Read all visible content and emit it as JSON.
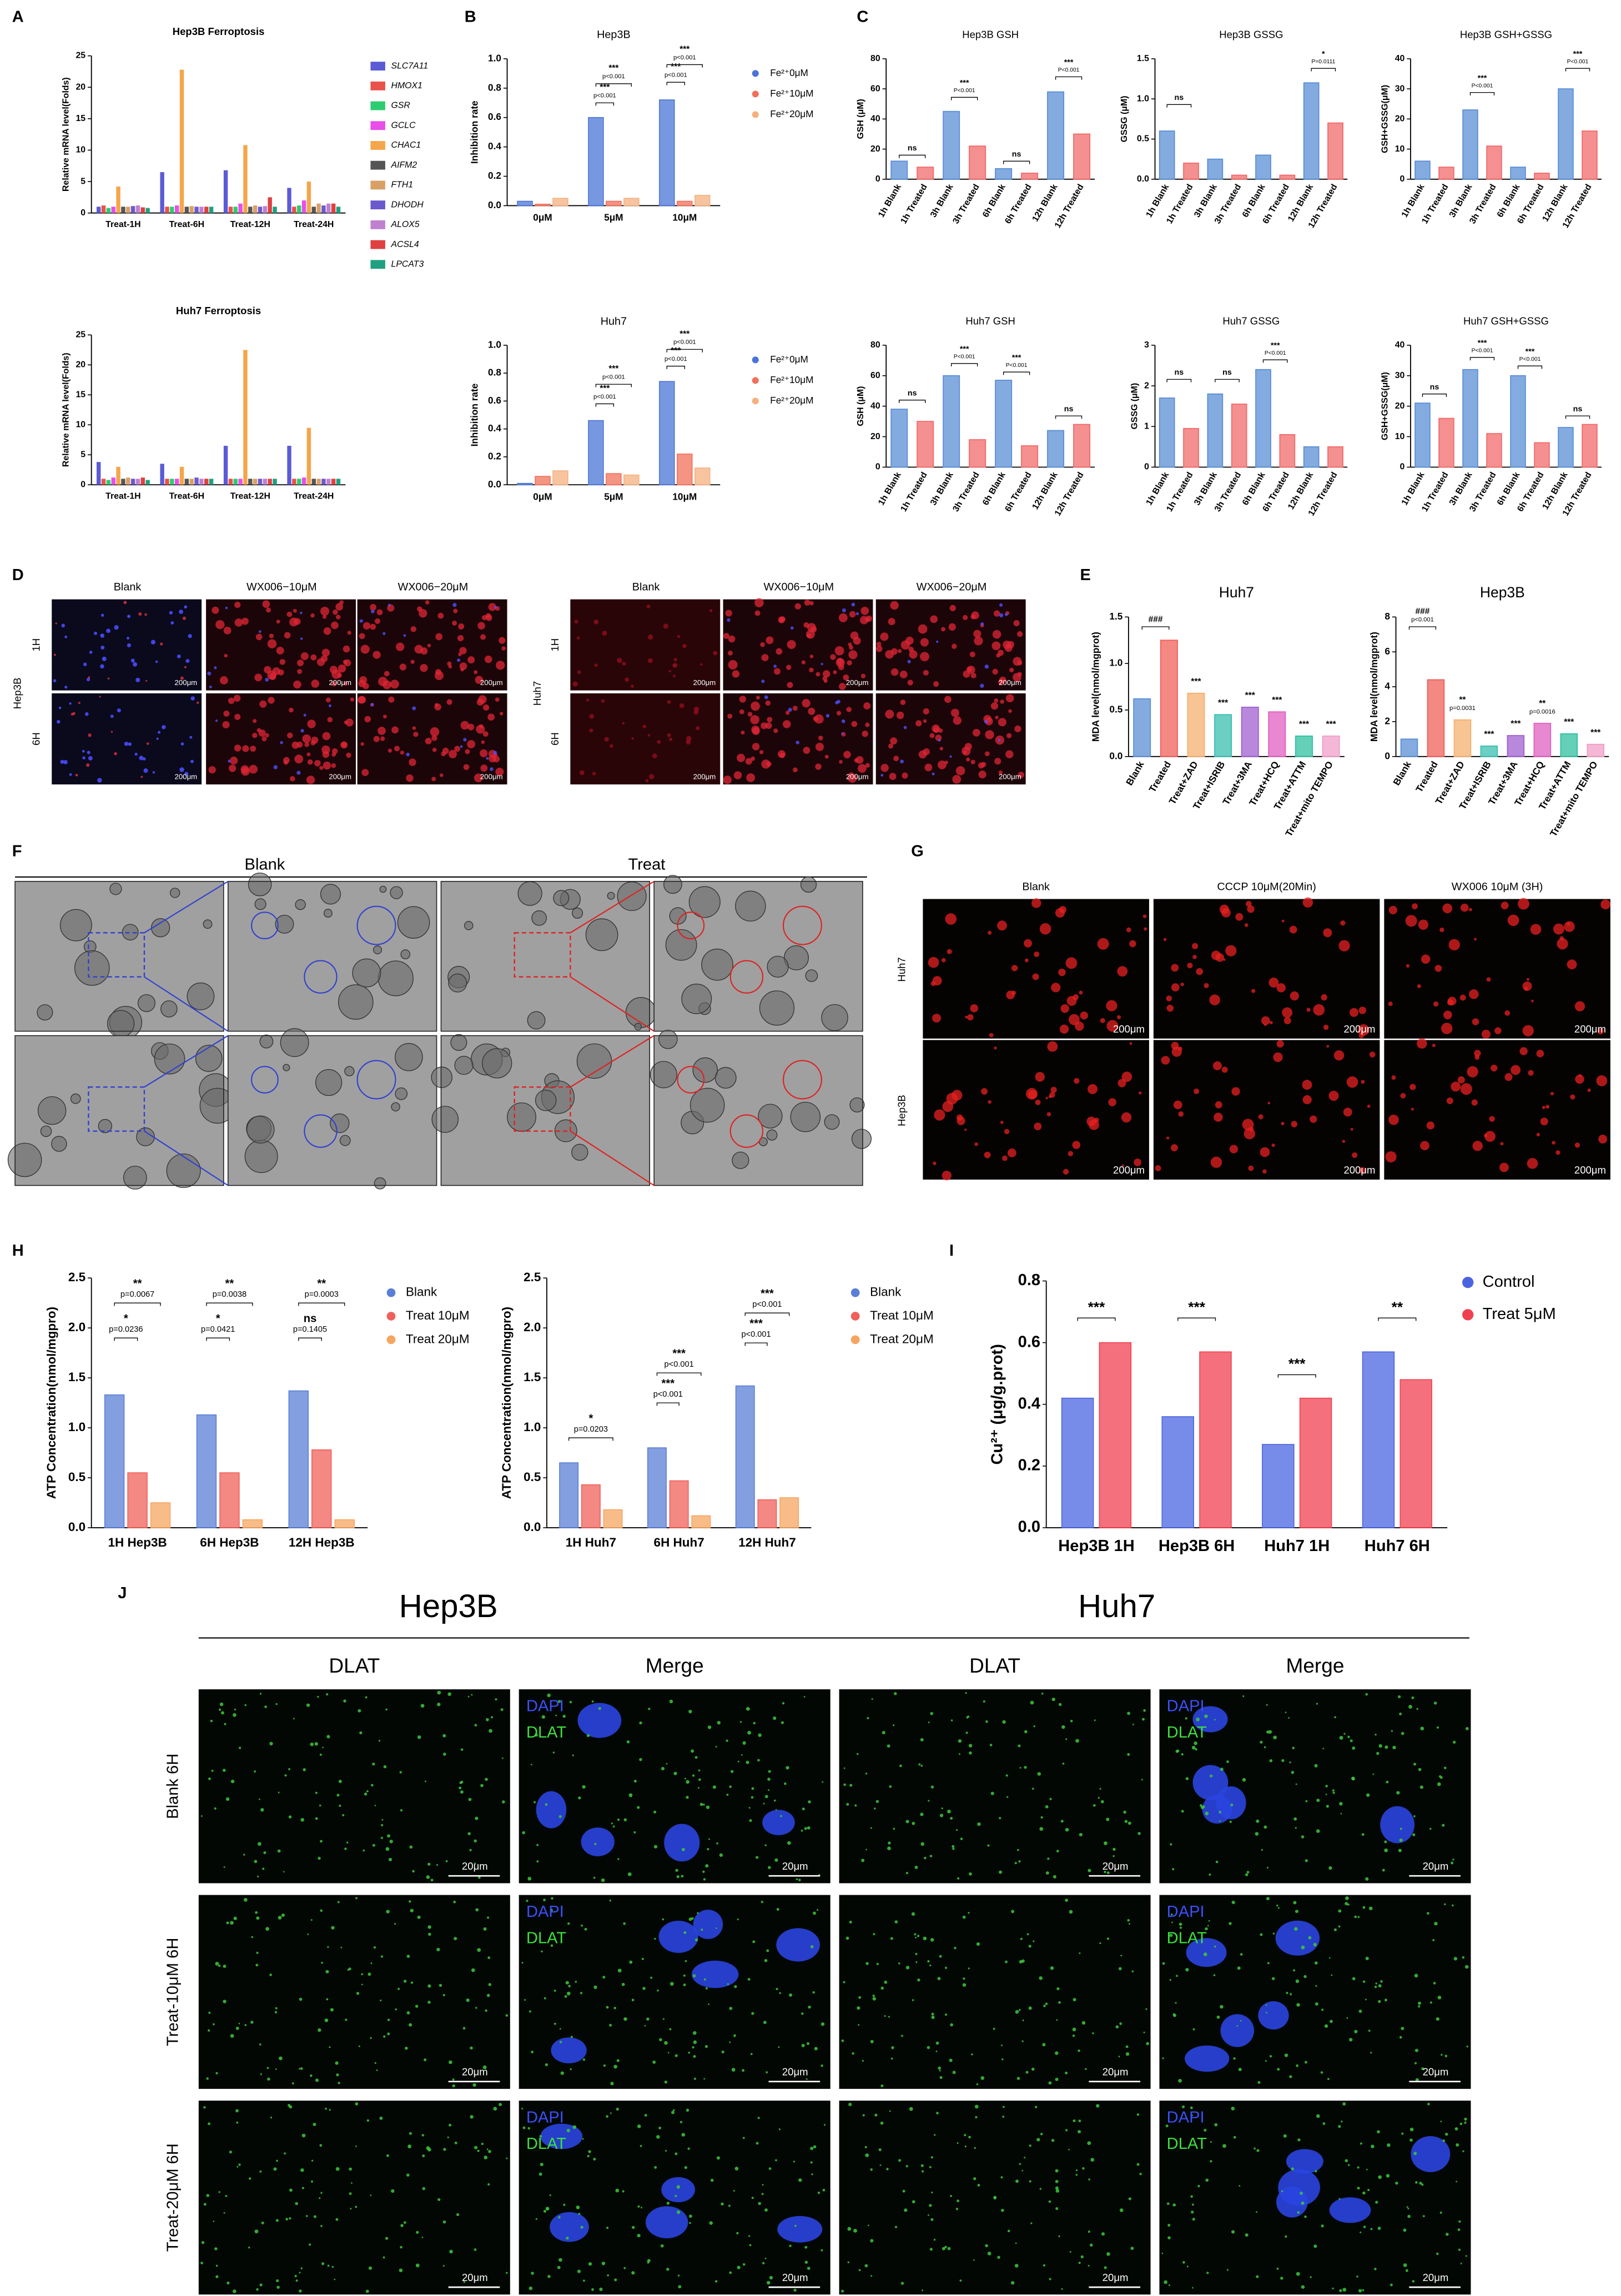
{
  "chart_data": [
    {
      "type": "bar",
      "title": "Hep3B Ferroptosis",
      "ylabel": "Relative mRNA level(Folds)",
      "categories": [
        "Treat-1H",
        "Treat-6H",
        "Treat-12H",
        "Treat-24H"
      ],
      "series": [
        {
          "name": "SLC7A11",
          "color": "#5b5bd6",
          "values": [
            1.0,
            6.5,
            6.8,
            4.0
          ]
        },
        {
          "name": "HMOX1",
          "color": "#e8524a",
          "values": [
            1.2,
            1.0,
            1.0,
            1.0
          ]
        },
        {
          "name": "GSR",
          "color": "#2ecc71",
          "values": [
            0.8,
            1.0,
            1.0,
            1.2
          ]
        },
        {
          "name": "GCLC",
          "color": "#e84ee8",
          "values": [
            1.0,
            1.2,
            1.5,
            2.0
          ]
        },
        {
          "name": "CHAC1",
          "color": "#f5a54a",
          "values": [
            4.2,
            22.8,
            10.8,
            5.0
          ]
        },
        {
          "name": "AIFM2",
          "color": "#555555",
          "values": [
            1.0,
            1.0,
            1.0,
            1.0
          ]
        },
        {
          "name": "FTH1",
          "color": "#d9a066",
          "values": [
            1.0,
            1.1,
            1.2,
            1.5
          ]
        },
        {
          "name": "DHODH",
          "color": "#6a5acd",
          "values": [
            1.1,
            1.0,
            1.0,
            1.2
          ]
        },
        {
          "name": "ALOX5",
          "color": "#c080d0",
          "values": [
            1.2,
            1.0,
            1.1,
            1.5
          ]
        },
        {
          "name": "ACSL4",
          "color": "#e04040",
          "values": [
            0.9,
            1.0,
            2.5,
            1.5
          ]
        },
        {
          "name": "LPCAT3",
          "color": "#20a080",
          "values": [
            0.8,
            1.0,
            1.0,
            1.0
          ]
        }
      ],
      "ylim": [
        0,
        25
      ],
      "yticks": [
        0,
        5,
        10,
        15,
        20,
        25
      ],
      "legend": true
    },
    {
      "type": "bar",
      "title": "Huh7 Ferroptosis",
      "ylabel": "Relative mRNA level(Folds)",
      "categories": [
        "Treat-1H",
        "Treat-6H",
        "Treat-12H",
        "Treat-24H"
      ],
      "series": [
        {
          "name": "SLC7A11",
          "color": "#5b5bd6",
          "values": [
            3.8,
            3.5,
            6.5,
            6.5
          ]
        },
        {
          "name": "HMOX1",
          "color": "#e8524a",
          "values": [
            1.0,
            1.0,
            1.0,
            1.0
          ]
        },
        {
          "name": "GSR",
          "color": "#2ecc71",
          "values": [
            0.8,
            1.0,
            1.0,
            1.0
          ]
        },
        {
          "name": "GCLC",
          "color": "#e84ee8",
          "values": [
            1.2,
            1.0,
            1.0,
            1.2
          ]
        },
        {
          "name": "CHAC1",
          "color": "#f5a54a",
          "values": [
            3.0,
            3.0,
            22.5,
            9.5
          ]
        },
        {
          "name": "AIFM2",
          "color": "#555555",
          "values": [
            1.0,
            1.0,
            1.0,
            1.0
          ]
        },
        {
          "name": "FTH1",
          "color": "#d9a066",
          "values": [
            1.2,
            1.0,
            1.0,
            1.0
          ]
        },
        {
          "name": "DHODH",
          "color": "#6a5acd",
          "values": [
            1.0,
            1.2,
            1.0,
            1.0
          ]
        },
        {
          "name": "ALOX5",
          "color": "#c080d0",
          "values": [
            1.0,
            1.0,
            1.0,
            1.0
          ]
        },
        {
          "name": "ACSL4",
          "color": "#e04040",
          "values": [
            1.2,
            1.0,
            1.0,
            1.0
          ]
        },
        {
          "name": "LPCAT3",
          "color": "#20a080",
          "values": [
            0.8,
            1.0,
            1.0,
            1.0
          ]
        }
      ],
      "ylim": [
        0,
        25
      ],
      "yticks": [
        0,
        5,
        10,
        15,
        20,
        25
      ],
      "legend": false
    },
    {
      "type": "bar",
      "title": "Hep3B",
      "ylabel": "Inhibition rate",
      "categories": [
        "0μM",
        "5μM",
        "10μM"
      ],
      "series": [
        {
          "name": "Fe²⁺0μM",
          "color": "#4a74d6",
          "values": [
            0.03,
            0.6,
            0.72
          ]
        },
        {
          "name": "Fe²⁺10μM",
          "color": "#f0705a",
          "values": [
            0.01,
            0.03,
            0.03
          ]
        },
        {
          "name": "Fe²⁺20μM",
          "color": "#f5b080",
          "values": [
            0.05,
            0.05,
            0.07
          ]
        }
      ],
      "ylim": [
        0,
        1
      ],
      "yticks": [
        {
          "value": 0,
          "label": "0.0"
        },
        0.2,
        0.4,
        0.6,
        0.8,
        {
          "value": 1,
          "label": "1.0"
        }
      ],
      "legend": true,
      "annotations": [
        "***",
        "p<0.001",
        "***",
        "p<0.001",
        "***",
        "p<0.001",
        "***",
        "p<0.001"
      ]
    },
    {
      "type": "bar",
      "title": "Huh7",
      "ylabel": "Inhibition rate",
      "categories": [
        "0μM",
        "5μM",
        "10μM"
      ],
      "series": [
        {
          "name": "Fe²⁺0μM",
          "color": "#4a74d6",
          "values": [
            0.01,
            0.46,
            0.74
          ]
        },
        {
          "name": "Fe²⁺10μM",
          "color": "#f0705a",
          "values": [
            0.06,
            0.08,
            0.22
          ]
        },
        {
          "name": "Fe²⁺20μM",
          "color": "#f5b080",
          "values": [
            0.1,
            0.07,
            0.12
          ]
        }
      ],
      "ylim": [
        0,
        1
      ],
      "yticks": [
        {
          "value": 0,
          "label": "0.0"
        },
        0.2,
        0.4,
        0.6,
        0.8,
        {
          "value": 1,
          "label": "1.0"
        }
      ],
      "legend": true,
      "annotations": [
        "***",
        "p<0.001",
        "***",
        "p<0.001",
        "***",
        "p<0.001",
        "***",
        "p<0.001"
      ]
    },
    {
      "type": "bar",
      "title": "Hep3B GSH",
      "ylabel": "GSH (μM)",
      "categories": [
        "1h Blank",
        "1h Treated",
        "3h Blank",
        "3h Treated",
        "6h Blank",
        "6h Treated",
        "12h Blank",
        "12h Treated"
      ],
      "values": [
        12,
        8,
        45,
        22,
        7,
        4,
        58,
        30
      ],
      "colors": [
        "#5b8fd6",
        "#f26b6b",
        "#5b8fd6",
        "#f26b6b",
        "#5b8fd6",
        "#f26b6b",
        "#5b8fd6",
        "#f26b6b"
      ],
      "ylim": [
        0,
        80
      ],
      "yticks": [
        0,
        20,
        40,
        60,
        80
      ],
      "annotations": [
        "ns",
        "***",
        "P<0.001",
        "ns",
        "***",
        "P<0.001"
      ]
    },
    {
      "type": "bar",
      "title": "Hep3B GSSG",
      "ylabel": "GSSG (μM)",
      "categories": [
        "1h Blank",
        "1h Treated",
        "3h Blank",
        "3h Treated",
        "6h Blank",
        "6h Treated",
        "12h Blank",
        "12h Treated"
      ],
      "values": [
        0.6,
        0.2,
        0.25,
        0.05,
        0.3,
        0.05,
        1.2,
        0.7
      ],
      "colors": [
        "#5b8fd6",
        "#f26b6b",
        "#5b8fd6",
        "#f26b6b",
        "#5b8fd6",
        "#f26b6b",
        "#5b8fd6",
        "#f26b6b"
      ],
      "ylim": [
        0,
        1.5
      ],
      "yticks": [
        {
          "value": 0,
          "label": "0.0"
        },
        0.5,
        {
          "value": 1,
          "label": "1.0"
        },
        1.5
      ],
      "annotations": [
        "ns",
        "*",
        "P=0.0111"
      ]
    },
    {
      "type": "bar",
      "title": "Hep3B GSH+GSSG",
      "ylabel": "GSH+GSSG(μM)",
      "categories": [
        "1h Blank",
        "1h Treated",
        "3h Blank",
        "3h Treated",
        "6h Blank",
        "6h Treated",
        "12h Blank",
        "12h Treated"
      ],
      "values": [
        6,
        4,
        23,
        11,
        4,
        2,
        30,
        16
      ],
      "colors": [
        "#5b8fd6",
        "#f26b6b",
        "#5b8fd6",
        "#f26b6b",
        "#5b8fd6",
        "#f26b6b",
        "#5b8fd6",
        "#f26b6b"
      ],
      "ylim": [
        0,
        40
      ],
      "yticks": [
        0,
        10,
        20,
        30,
        40
      ],
      "annotations": [
        "***",
        "P<0.001",
        "***",
        "P<0.001"
      ]
    },
    {
      "type": "bar",
      "title": "Huh7 GSH",
      "ylabel": "GSH (μM)",
      "categories": [
        "1h Blank",
        "1h Treated",
        "3h Blank",
        "3h Treated",
        "6h Blank",
        "6h Treated",
        "12h Blank",
        "12h Treated"
      ],
      "values": [
        38,
        30,
        60,
        18,
        57,
        14,
        24,
        28
      ],
      "colors": [
        "#5b8fd6",
        "#f26b6b",
        "#5b8fd6",
        "#f26b6b",
        "#5b8fd6",
        "#f26b6b",
        "#5b8fd6",
        "#f26b6b"
      ],
      "ylim": [
        0,
        80
      ],
      "yticks": [
        0,
        20,
        40,
        60,
        80
      ],
      "annotations": [
        "ns",
        "***",
        "P<0.001",
        "***",
        "P<0.001",
        "ns"
      ]
    },
    {
      "type": "bar",
      "title": "Huh7 GSSG",
      "ylabel": "GSSG (μM)",
      "categories": [
        "1h Blank",
        "1h Treated",
        "3h Blank",
        "3h Treated",
        "6h Blank",
        "6h Treated",
        "12h Blank",
        "12h Treated"
      ],
      "values": [
        1.7,
        0.95,
        1.8,
        1.55,
        2.4,
        0.8,
        0.5,
        0.5
      ],
      "colors": [
        "#5b8fd6",
        "#f26b6b",
        "#5b8fd6",
        "#f26b6b",
        "#5b8fd6",
        "#f26b6b",
        "#5b8fd6",
        "#f26b6b"
      ],
      "ylim": [
        0,
        3
      ],
      "yticks": [
        0,
        1,
        2,
        3
      ],
      "annotations": [
        "ns",
        "ns",
        "***",
        "P<0.001"
      ]
    },
    {
      "type": "bar",
      "title": "Huh7 GSH+GSSG",
      "ylabel": "GSH+GSSG(μM)",
      "categories": [
        "1h Blank",
        "1h Treated",
        "3h Blank",
        "3h Treated",
        "6h Blank",
        "6h Treated",
        "12h Blank",
        "12h Treated"
      ],
      "values": [
        21,
        16,
        32,
        11,
        30,
        8,
        13,
        14
      ],
      "colors": [
        "#5b8fd6",
        "#f26b6b",
        "#5b8fd6",
        "#f26b6b",
        "#5b8fd6",
        "#f26b6b",
        "#5b8fd6",
        "#f26b6b"
      ],
      "ylim": [
        0,
        40
      ],
      "yticks": [
        0,
        10,
        20,
        30,
        40
      ],
      "annotations": [
        "ns",
        "***",
        "P<0.001",
        "***",
        "P<0.001",
        "ns"
      ]
    },
    {
      "type": "bar",
      "title": "Huh7",
      "ylabel": "MDA level(nmol/mgprot)",
      "categories": [
        "Blank",
        "Treated",
        "Treat+ZAD",
        "Treat+ISRIB",
        "Treat+3MA",
        "Treat+HCQ",
        "Treat+ATTM",
        "Treat+mito TEMPO"
      ],
      "values": [
        0.62,
        1.25,
        0.68,
        0.45,
        0.53,
        0.48,
        0.22,
        0.22
      ],
      "colors": [
        "#5b8fd6",
        "#f0605a",
        "#f5b070",
        "#3bbfb0",
        "#a060d0",
        "#e060c0",
        "#30c0a0",
        "#f0a0c8"
      ],
      "ylim": [
        0,
        1.5
      ],
      "yticks": [
        {
          "value": 0,
          "label": "0.0"
        },
        0.5,
        {
          "value": 1,
          "label": "1.0"
        },
        1.5
      ],
      "annotations": [
        "###",
        "***",
        "***",
        "***",
        "***",
        "***",
        "***"
      ]
    },
    {
      "type": "bar",
      "title": "Hep3B",
      "ylabel": "MDA level(nmol/mgprot)",
      "categories": [
        "Blank",
        "Treated",
        "Treat+ZAD",
        "Treat+ISRIB",
        "Treat+3MA",
        "Treat+HCQ",
        "Treat+ATTM",
        "Treat+mito TEMPO"
      ],
      "values": [
        1.0,
        4.4,
        2.1,
        0.6,
        1.2,
        1.9,
        1.3,
        0.7
      ],
      "colors": [
        "#5b8fd6",
        "#f0605a",
        "#f5b070",
        "#3bbfb0",
        "#a060d0",
        "#e060c0",
        "#30c0a0",
        "#f0a0c8"
      ],
      "ylim": [
        0,
        8
      ],
      "yticks": [
        0,
        2,
        4,
        6,
        8
      ],
      "annotations": [
        "###",
        "p<0.001",
        "**",
        "p=0.0031",
        "***",
        "***",
        "**",
        "p=0.0016",
        "***",
        "***"
      ]
    },
    {
      "type": "bar",
      "ylabel": "ATP Concentration(nmol/mgpro)",
      "categories": [
        "1H Hep3B",
        "6H Hep3B",
        "12H Hep3B"
      ],
      "series": [
        {
          "name": "Blank",
          "color": "#5b7fd6",
          "values": [
            1.33,
            1.13,
            1.37
          ]
        },
        {
          "name": "Treat 10μM",
          "color": "#f0605a",
          "values": [
            0.55,
            0.55,
            0.78
          ]
        },
        {
          "name": "Treat 20μM",
          "color": "#f5a560",
          "values": [
            0.25,
            0.08,
            0.08
          ]
        }
      ],
      "ylim": [
        0,
        2.5
      ],
      "yticks": [
        {
          "value": 0,
          "label": "0.0"
        },
        0.5,
        {
          "value": 1,
          "label": "1.0"
        },
        1.5,
        {
          "value": 2,
          "label": "2.0"
        },
        2.5
      ],
      "legend": true,
      "annotations": [
        "**",
        "p=0.0067",
        "*",
        "p=0.0236",
        "**",
        "p=0.0038",
        "*",
        "p=0.0421",
        "**",
        "p=0.0003",
        "ns",
        "p=0.1405"
      ]
    },
    {
      "type": "bar",
      "ylabel": "ATP Concentration(nmol/mgpro)",
      "categories": [
        "1H Huh7",
        "6H Huh7",
        "12H Huh7"
      ],
      "series": [
        {
          "name": "Blank",
          "color": "#5b7fd6",
          "values": [
            0.65,
            0.8,
            1.42
          ]
        },
        {
          "name": "Treat 10μM",
          "color": "#f0605a",
          "values": [
            0.43,
            0.47,
            0.28
          ]
        },
        {
          "name": "Treat 20μM",
          "color": "#f5a560",
          "values": [
            0.18,
            0.12,
            0.3
          ]
        }
      ],
      "ylim": [
        0,
        2.5
      ],
      "yticks": [
        {
          "value": 0,
          "label": "0.0"
        },
        0.5,
        {
          "value": 1,
          "label": "1.0"
        },
        1.5,
        {
          "value": 2,
          "label": "2.0"
        },
        2.5
      ],
      "legend": true,
      "annotations": [
        "*",
        "p=0.0203",
        "***",
        "p<0.001",
        "***",
        "p<0.001",
        "***",
        "p<0.001",
        "***",
        "p<0.001"
      ]
    },
    {
      "type": "bar",
      "ylabel": "Cu²⁺ (μg/g.prot)",
      "categories": [
        "Hep3B 1H",
        "Hep3B 6H",
        "Huh7 1H",
        "Huh7 6H"
      ],
      "series": [
        {
          "name": "Control",
          "color": "#4a64e0",
          "values": [
            0.42,
            0.36,
            0.27,
            0.57
          ]
        },
        {
          "name": "Treat 5μM",
          "color": "#f04050",
          "values": [
            0.6,
            0.57,
            0.42,
            0.48
          ]
        }
      ],
      "ylim": [
        0,
        0.8
      ],
      "yticks": [
        {
          "value": 0,
          "label": "0.0"
        },
        0.2,
        0.4,
        0.6,
        0.8
      ],
      "legend": true,
      "annotations": [
        "***",
        "***",
        "***",
        "**"
      ]
    }
  ],
  "panel_labels": [
    "A",
    "B",
    "C",
    "D",
    "E",
    "F",
    "G",
    "H",
    "I",
    "J"
  ],
  "images": {
    "D": {
      "columns": [
        "Blank",
        "WX006−10μM",
        "WX006−20μM"
      ],
      "rows": [
        "1H",
        "6H"
      ],
      "cell_lines": [
        "Hep3B",
        "Huh7"
      ],
      "scale_bar": "200μm"
    },
    "F": {
      "groups": [
        "Blank",
        "Treat"
      ]
    },
    "G": {
      "columns": [
        "Blank",
        "CCCP 10μM(20Min)",
        "WX006 10μM (3H)"
      ],
      "rows": [
        "Huh7",
        "Hep3B"
      ],
      "scale_bar": "200μm"
    },
    "J": {
      "cell_lines": [
        "Hep3B",
        "Huh7"
      ],
      "columns": [
        "DLAT",
        "Merge",
        "DLAT",
        "Merge"
      ],
      "rows": [
        "Blank 6H",
        "Treat-10μM 6H",
        "Treat-20μM 6H"
      ],
      "stains": [
        "DAPI",
        "DLAT"
      ],
      "scale_bar": "20μm"
    }
  }
}
